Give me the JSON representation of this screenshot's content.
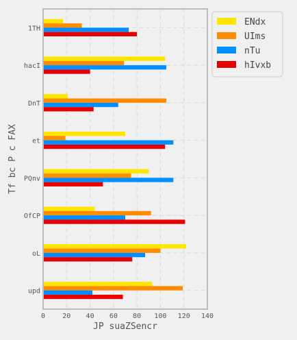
{
  "chart_data": {
    "type": "bar",
    "orientation": "horizontal",
    "categories": [
      "1TH",
      "hacI",
      "DnT",
      "et",
      "PQnv",
      "OfCP",
      "oL",
      "upd"
    ],
    "series": [
      {
        "name": "ENdx",
        "color": "#ffe600",
        "values": [
          17,
          104,
          21,
          70,
          90,
          44,
          122,
          93
        ]
      },
      {
        "name": "UIms",
        "color": "#ff8c00",
        "values": [
          33,
          69,
          105,
          19,
          75,
          92,
          100,
          119
        ]
      },
      {
        "name": "nTu",
        "color": "#008fff",
        "values": [
          73,
          105,
          64,
          111,
          111,
          70,
          87,
          42
        ]
      },
      {
        "name": "hIvxb",
        "color": "#e60000",
        "values": [
          80,
          40,
          43,
          104,
          51,
          121,
          76,
          68
        ]
      }
    ],
    "title": "",
    "xlabel": "JP  suaZSencr",
    "ylabel": "Tf bc P c FAX",
    "xlim": [
      0,
      140
    ],
    "xticks": [
      "0",
      "20",
      "40",
      "60",
      "80",
      "100",
      "120",
      "140"
    ],
    "grid": true,
    "legend_position": "top-right"
  }
}
